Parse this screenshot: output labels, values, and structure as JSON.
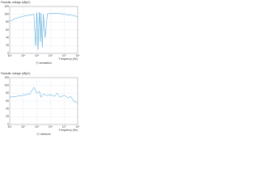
{
  "chart_data": [
    {
      "type": "line",
      "y_label": "Parasitic voltage (dBµV)",
      "x_label": "Frequency (Hz)",
      "caption": "ⓐ simulation",
      "log_x": true,
      "grid": true,
      "xlim": [
        1000,
        100000000
      ],
      "ylim": [
        0,
        120
      ],
      "xticks": [
        {
          "value": 1000,
          "label": "10³"
        },
        {
          "value": 10000,
          "label": "10⁴"
        },
        {
          "value": 100000,
          "label": "10⁵"
        },
        {
          "value": 1000000,
          "label": "10⁶"
        },
        {
          "value": 10000000,
          "label": "10⁷"
        },
        {
          "value": 100000000,
          "label": "10⁸"
        }
      ],
      "yticks": [
        0,
        20,
        40,
        60,
        80,
        100,
        120
      ],
      "series": [
        {
          "name": "simulation",
          "color": "#3a9fd6",
          "x": [
            1000,
            3000,
            10000,
            30000,
            60000,
            80000,
            100000,
            120000,
            150000,
            180000,
            200000,
            250000,
            300000,
            400000,
            600000,
            1000000,
            3000000,
            10000000,
            30000000,
            100000000
          ],
          "values": [
            82,
            90,
            95,
            98,
            100,
            20,
            104,
            10,
            105,
            30,
            103,
            15,
            100,
            40,
            101,
            102,
            103,
            100,
            98,
            94
          ]
        }
      ]
    },
    {
      "type": "line",
      "y_label": "Parasitic voltage (dBµV)",
      "x_label": "Frequency (Hz)",
      "caption": "ⓑ measure",
      "log_x": true,
      "grid": true,
      "xlim": [
        1000,
        100000000
      ],
      "ylim": [
        0,
        120
      ],
      "xticks": [
        {
          "value": 1000,
          "label": "10³"
        },
        {
          "value": 10000,
          "label": "10⁴"
        },
        {
          "value": 100000,
          "label": "10⁵"
        },
        {
          "value": 1000000,
          "label": "10⁶"
        },
        {
          "value": 10000000,
          "label": "10⁷"
        },
        {
          "value": 100000000,
          "label": "10⁸"
        }
      ],
      "yticks": [
        0,
        20,
        40,
        60,
        80,
        100,
        120
      ],
      "series": [
        {
          "name": "measure",
          "color": "#3a9fd6",
          "x": [
            1000,
            3000,
            10000,
            30000,
            60000,
            100000,
            150000,
            200000,
            300000,
            500000,
            1000000,
            2000000,
            3000000,
            5000000,
            10000000,
            20000000,
            30000000,
            50000000,
            100000000
          ],
          "values": [
            70,
            72,
            75,
            78,
            95,
            80,
            85,
            70,
            78,
            74,
            76,
            72,
            80,
            70,
            75,
            68,
            72,
            60,
            55
          ]
        }
      ]
    }
  ]
}
